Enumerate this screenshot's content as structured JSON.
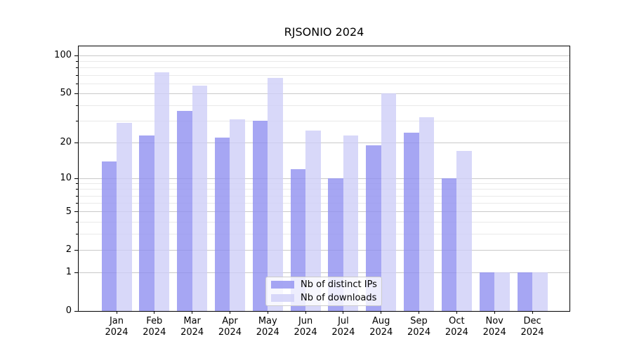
{
  "chart_data": {
    "type": "bar",
    "title": "RJSONIO 2024",
    "categories": [
      "Jan",
      "Feb",
      "Mar",
      "Apr",
      "May",
      "Jun",
      "Jul",
      "Aug",
      "Sep",
      "Oct",
      "Nov",
      "Dec"
    ],
    "x_year_label": "2024",
    "series": [
      {
        "name": "Nb of distinct IPs",
        "color": "#9090f0",
        "alpha": 0.8,
        "values": [
          14,
          23,
          36,
          22,
          30,
          12,
          10,
          19,
          24,
          10,
          1,
          1
        ]
      },
      {
        "name": "Nb of downloads",
        "color": "#cecef7",
        "alpha": 0.8,
        "values": [
          29,
          74,
          58,
          31,
          67,
          25,
          23,
          50,
          32,
          17,
          1,
          1
        ]
      }
    ],
    "yscale": "log1p",
    "ylim": [
      0,
      119
    ],
    "yticks": [
      0,
      1,
      2,
      5,
      10,
      20,
      50,
      100
    ],
    "minor_yticks": [
      3,
      4,
      6,
      7,
      8,
      9,
      30,
      40,
      60,
      70,
      80,
      90
    ],
    "grid": true,
    "legend_position": "inside lower center-right"
  },
  "colors": {
    "background": "#ffffff",
    "axis": "#000000",
    "grid_major": "#c9c9c9",
    "grid_minor": "#e9e9e9",
    "legend_border": "#cccccc",
    "text": "#000000"
  }
}
